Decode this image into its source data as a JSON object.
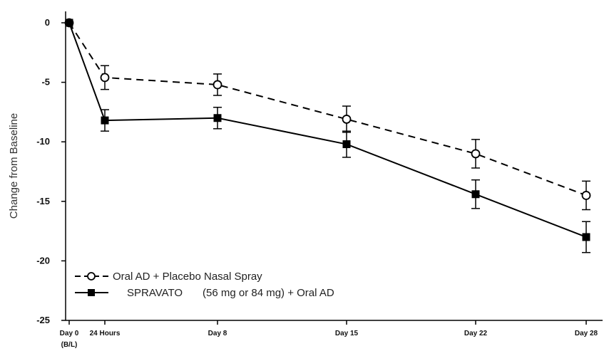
{
  "chart_data": {
    "type": "line",
    "title": "",
    "xlabel": "",
    "ylabel": "Change from Baseline",
    "ylim": [
      -25,
      0
    ],
    "yticks": [
      0,
      -5,
      -10,
      -15,
      -20,
      -25
    ],
    "x_days": [
      0,
      1,
      8,
      15,
      22,
      28
    ],
    "x_tick_labels": [
      "Day 0",
      "24 Hours",
      "Day 8",
      "Day 15",
      "Day 22",
      "Day 28"
    ],
    "x_sub_label": "(B/L)",
    "grid": false,
    "legend_position": "bottom-left",
    "series": [
      {
        "name": "Oral AD + Placebo Nasal Spray",
        "marker": "open-circle",
        "line_style": "dashed",
        "values": [
          0,
          -4.6,
          -5.2,
          -8.1,
          -11.0,
          -14.5
        ],
        "error": [
          0,
          1.0,
          0.9,
          1.1,
          1.2,
          1.2
        ]
      },
      {
        "name": "SPRAVATO (56 mg or 84 mg) + Oral AD",
        "name_parts": [
          "SPRAVATO",
          "(56 mg or 84 mg) + Oral AD"
        ],
        "marker": "filled-square",
        "line_style": "solid",
        "values": [
          0,
          -8.2,
          -8.0,
          -10.2,
          -14.4,
          -18.0
        ],
        "error": [
          0,
          0.9,
          0.9,
          1.1,
          1.2,
          1.3
        ]
      }
    ],
    "colors": {
      "line": "#000000",
      "axis": "#000000"
    }
  }
}
